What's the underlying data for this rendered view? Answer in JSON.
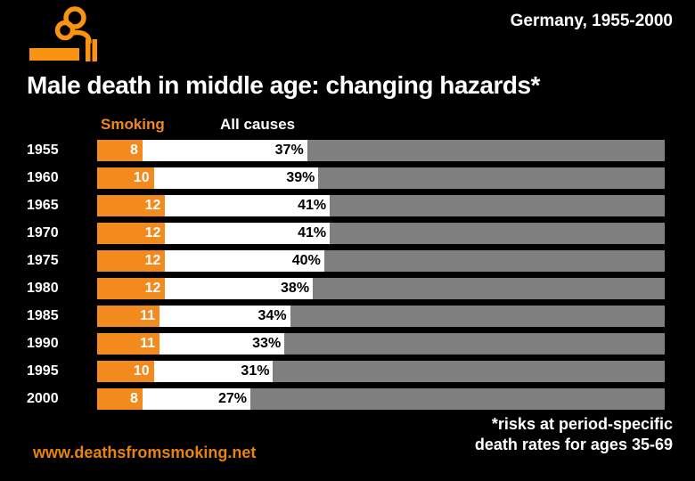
{
  "colors": {
    "background": "#000000",
    "bar_orange": "#F28A1E",
    "logo_orange": "#FA9310",
    "header_orange": "#F0881A",
    "link_orange": "#E8830D",
    "bar_gray": "#7F7F7F",
    "text_white": "#FFFFFF",
    "percent_text_black": "#000000"
  },
  "header": {
    "region_period": "Germany, 1955-2000"
  },
  "title": "Male death in middle age: changing hazards*",
  "columns": {
    "smoking": "Smoking",
    "all_causes": "All causes"
  },
  "chart_data": {
    "type": "bar",
    "orientation": "horizontal",
    "stacked": true,
    "title": "Male death in middle age: changing hazards*",
    "categories": [
      "1955",
      "1960",
      "1965",
      "1970",
      "1975",
      "1980",
      "1985",
      "1990",
      "1995",
      "2000"
    ],
    "series": [
      {
        "name": "Smoking",
        "values": [
          8,
          10,
          12,
          12,
          12,
          12,
          11,
          11,
          10,
          8
        ]
      },
      {
        "name": "All causes",
        "values": [
          37,
          39,
          41,
          41,
          40,
          38,
          34,
          33,
          31,
          27
        ]
      }
    ],
    "smoking_labels": [
      "8",
      "10",
      "12",
      "12",
      "12",
      "12",
      "11",
      "11",
      "10",
      "8"
    ],
    "all_causes_labels": [
      "37%",
      "39%",
      "41%",
      "41%",
      "40%",
      "38%",
      "34%",
      "33%",
      "31%",
      "27%"
    ],
    "axis_range_percent": [
      0,
      100
    ],
    "legend_position": "top",
    "grid": false,
    "bar_encoding": "orange segment = smoking %, white segment extends to all-causes %, gray fills remainder to 100%"
  },
  "footer": {
    "website": "www.deathsfromsmoking.net",
    "note_line1": "*risks at period-specific",
    "note_line2": "death rates for ages 35-69"
  }
}
